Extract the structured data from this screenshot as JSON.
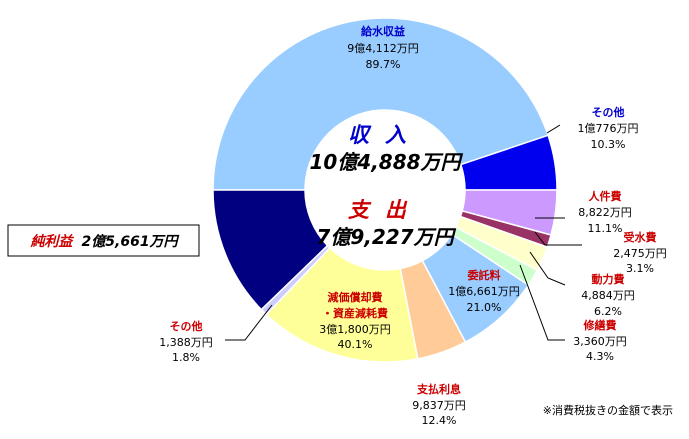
{
  "chart_data": {
    "type": "pie",
    "variant": "double-doughnut",
    "outer_ring": {
      "name": "収入",
      "total": "10億4,888万円",
      "slices": [
        {
          "name": "給水収益",
          "amount": "9億4,112万円",
          "percent": "89.7%",
          "value": 89.7,
          "color": "#99ccff",
          "label_color": "#0000cc"
        },
        {
          "name": "その他",
          "amount": "1億776万円",
          "percent": "10.3%",
          "value": 10.3,
          "color": "#0000ee",
          "label_color": "#0000cc"
        }
      ]
    },
    "inner_ring": {
      "name": "支出",
      "total": "7億9,227万円",
      "slices": [
        {
          "name": "人件費",
          "amount": "8,822万円",
          "percent": "11.1%",
          "value": 8.42,
          "color": "#cc99ff",
          "label_color": "#cc0000"
        },
        {
          "name": "受水費",
          "amount": "2,475万円",
          "percent": "3.1%",
          "value": 2.36,
          "color": "#993366",
          "label_color": "#cc0000"
        },
        {
          "name": "動力費",
          "amount": "4,884万円",
          "percent": "6.2%",
          "value": 4.66,
          "color": "#ffffcc",
          "label_color": "#cc0000"
        },
        {
          "name": "修繕費",
          "amount": "3,360万円",
          "percent": "4.3%",
          "value": 3.2,
          "color": "#ccffcc",
          "label_color": "#cc0000"
        },
        {
          "name": "委託料",
          "amount": "1億6,661万円",
          "percent": "21.0%",
          "value": 15.88,
          "color": "#99ccff",
          "label_color": "#cc0000"
        },
        {
          "name": "支払利息",
          "amount": "9,837万円",
          "percent": "12.4%",
          "value": 9.38,
          "color": "#ffcc99",
          "label_color": "#cc0000"
        },
        {
          "name": "減価償却費",
          "name2": "・資産減耗費",
          "amount": "3億1,800万円",
          "percent": "40.1%",
          "value": 30.32,
          "color": "#ffff99",
          "label_color": "#cc0000"
        },
        {
          "name": "その他",
          "amount": "1,388万円",
          "percent": "1.8%",
          "value": 1.32,
          "color": "#ccccff",
          "label_color": "#cc0000"
        },
        {
          "name": "純利益",
          "amount": "2億5,661万円",
          "value": 24.46,
          "color": "#000080",
          "label_color": "#cc0000"
        }
      ]
    },
    "note": "※消費税抜きの金額で表示"
  },
  "colors": {
    "outline": "#ffffff",
    "leader": "#000000",
    "revenue_title": "#0000cc",
    "expense_title": "#cc0000"
  }
}
